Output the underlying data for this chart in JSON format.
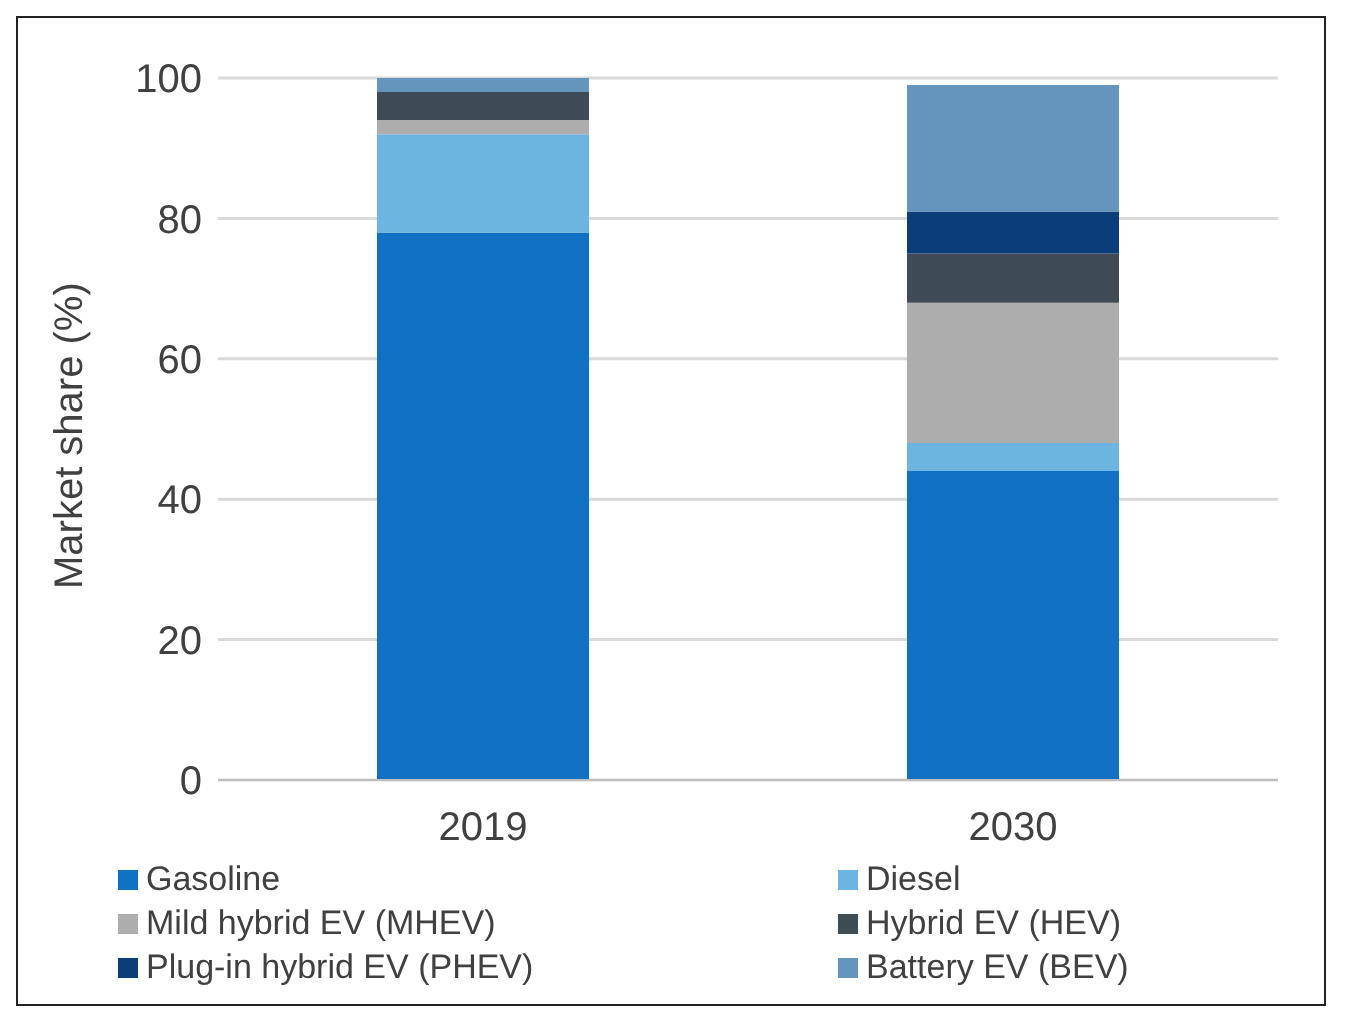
{
  "chart_data": {
    "type": "bar",
    "stacked": true,
    "ylabel": "Market share (%)",
    "categories": [
      "2019",
      "2030"
    ],
    "series": [
      {
        "name": "Gasoline",
        "color": "#1172c4",
        "values": [
          78,
          44
        ]
      },
      {
        "name": "Diesel",
        "color": "#6bb5e0",
        "values": [
          14,
          4
        ]
      },
      {
        "name": "Mild hybrid EV (MHEV)",
        "color": "#adadad",
        "values": [
          2,
          20
        ]
      },
      {
        "name": "Hybrid EV (HEV)",
        "color": "#3f4a57",
        "values": [
          4,
          7
        ]
      },
      {
        "name": "Plug-in hybrid EV (PHEV)",
        "color": "#0b3d78",
        "values": [
          0,
          6
        ]
      },
      {
        "name": "Battery EV (BEV)",
        "color": "#6595bd",
        "values": [
          2,
          18
        ]
      }
    ],
    "ylim": [
      0,
      100
    ],
    "yticks": [
      0,
      20,
      40,
      60,
      80,
      100
    ],
    "grid": "y",
    "legend": "bottom"
  }
}
